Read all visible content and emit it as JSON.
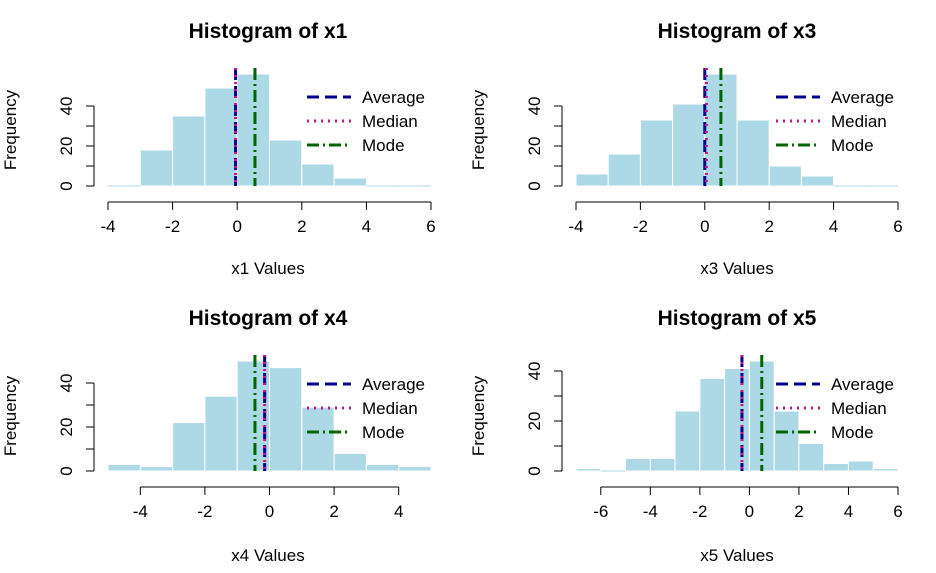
{
  "chart_data": [
    {
      "type": "bar",
      "title": "Histogram of x1",
      "xlabel": "x1 Values",
      "ylabel": "Frequency",
      "xlim": [
        -4,
        6
      ],
      "ylim": [
        0,
        56
      ],
      "xticks": [
        -4,
        -2,
        0,
        2,
        4,
        6
      ],
      "yticks": [
        0,
        20,
        40
      ],
      "bins": [
        {
          "from": -4,
          "to": -3,
          "count": 0
        },
        {
          "from": -3,
          "to": -2,
          "count": 18
        },
        {
          "from": -2,
          "to": -1,
          "count": 35
        },
        {
          "from": -1,
          "to": 0,
          "count": 49
        },
        {
          "from": 0,
          "to": 1,
          "count": 56
        },
        {
          "from": 1,
          "to": 2,
          "count": 23
        },
        {
          "from": 2,
          "to": 3,
          "count": 11
        },
        {
          "from": 3,
          "to": 4,
          "count": 4
        },
        {
          "from": 4,
          "to": 5,
          "count": 0
        },
        {
          "from": 5,
          "to": 6,
          "count": 0
        }
      ],
      "lines": [
        {
          "name": "Average",
          "x": -0.05,
          "color": "#00008b",
          "style": "dashed"
        },
        {
          "name": "Median",
          "x": -0.05,
          "color": "#c71585",
          "style": "dotted"
        },
        {
          "name": "Mode",
          "x": 0.55,
          "color": "#006400",
          "style": "dashdot"
        }
      ],
      "legend_position": "top-right"
    },
    {
      "type": "bar",
      "title": "Histogram of x3",
      "xlabel": "x3 Values",
      "ylabel": "Frequency",
      "xlim": [
        -4,
        6
      ],
      "ylim": [
        0,
        56
      ],
      "xticks": [
        -4,
        -2,
        0,
        2,
        4,
        6
      ],
      "yticks": [
        0,
        20,
        40
      ],
      "bins": [
        {
          "from": -4,
          "to": -3,
          "count": 6
        },
        {
          "from": -3,
          "to": -2,
          "count": 16
        },
        {
          "from": -2,
          "to": -1,
          "count": 33
        },
        {
          "from": -1,
          "to": 0,
          "count": 41
        },
        {
          "from": 0,
          "to": 1,
          "count": 56
        },
        {
          "from": 1,
          "to": 2,
          "count": 33
        },
        {
          "from": 2,
          "to": 3,
          "count": 10
        },
        {
          "from": 3,
          "to": 4,
          "count": 5
        },
        {
          "from": 4,
          "to": 5,
          "count": 0
        },
        {
          "from": 5,
          "to": 6,
          "count": 0
        }
      ],
      "lines": [
        {
          "name": "Average",
          "x": 0.0,
          "color": "#00008b",
          "style": "dashed"
        },
        {
          "name": "Median",
          "x": 0.05,
          "color": "#c71585",
          "style": "dotted"
        },
        {
          "name": "Mode",
          "x": 0.5,
          "color": "#006400",
          "style": "dashdot"
        }
      ],
      "legend_position": "top-right"
    },
    {
      "type": "bar",
      "title": "Histogram of x4",
      "xlabel": "x4 Values",
      "ylabel": "Frequency",
      "xlim": [
        -5,
        5
      ],
      "ylim": [
        0,
        50
      ],
      "xticks": [
        -4,
        -2,
        0,
        2,
        4
      ],
      "yticks": [
        0,
        20,
        40
      ],
      "bins": [
        {
          "from": -5,
          "to": -4,
          "count": 3
        },
        {
          "from": -4,
          "to": -3,
          "count": 2
        },
        {
          "from": -3,
          "to": -2,
          "count": 22
        },
        {
          "from": -2,
          "to": -1,
          "count": 34
        },
        {
          "from": -1,
          "to": 0,
          "count": 50
        },
        {
          "from": 0,
          "to": 1,
          "count": 47
        },
        {
          "from": 1,
          "to": 2,
          "count": 29
        },
        {
          "from": 2,
          "to": 3,
          "count": 8
        },
        {
          "from": 3,
          "to": 4,
          "count": 3
        },
        {
          "from": 4,
          "to": 5,
          "count": 2
        }
      ],
      "lines": [
        {
          "name": "Average",
          "x": -0.15,
          "color": "#00008b",
          "style": "dashed"
        },
        {
          "name": "Median",
          "x": -0.15,
          "color": "#c71585",
          "style": "dotted"
        },
        {
          "name": "Mode",
          "x": -0.45,
          "color": "#006400",
          "style": "dashdot"
        }
      ],
      "legend_position": "top-right"
    },
    {
      "type": "bar",
      "title": "Histogram of x5",
      "xlabel": "x5 Values",
      "ylabel": "Frequency",
      "xlim": [
        -7,
        6
      ],
      "ylim": [
        0,
        44
      ],
      "xticks": [
        -6,
        -4,
        -2,
        0,
        2,
        4,
        6
      ],
      "yticks": [
        0,
        20,
        40
      ],
      "bins": [
        {
          "from": -7,
          "to": -6,
          "count": 1
        },
        {
          "from": -6,
          "to": -5,
          "count": 0
        },
        {
          "from": -5,
          "to": -4,
          "count": 5
        },
        {
          "from": -4,
          "to": -3,
          "count": 5
        },
        {
          "from": -3,
          "to": -2,
          "count": 24
        },
        {
          "from": -2,
          "to": -1,
          "count": 37
        },
        {
          "from": -1,
          "to": 0,
          "count": 41
        },
        {
          "from": 0,
          "to": 1,
          "count": 44
        },
        {
          "from": 1,
          "to": 2,
          "count": 24
        },
        {
          "from": 2,
          "to": 3,
          "count": 11
        },
        {
          "from": 3,
          "to": 4,
          "count": 3
        },
        {
          "from": 4,
          "to": 5,
          "count": 4
        },
        {
          "from": 5,
          "to": 6,
          "count": 1
        }
      ],
      "lines": [
        {
          "name": "Average",
          "x": -0.3,
          "color": "#00008b",
          "style": "dashed"
        },
        {
          "name": "Median",
          "x": -0.3,
          "color": "#c71585",
          "style": "dotted"
        },
        {
          "name": "Mode",
          "x": 0.5,
          "color": "#006400",
          "style": "dashdot"
        }
      ],
      "legend_position": "top-right"
    }
  ],
  "colors": {
    "bar_fill": "#add8e6",
    "bar_border": "#ffffff"
  }
}
